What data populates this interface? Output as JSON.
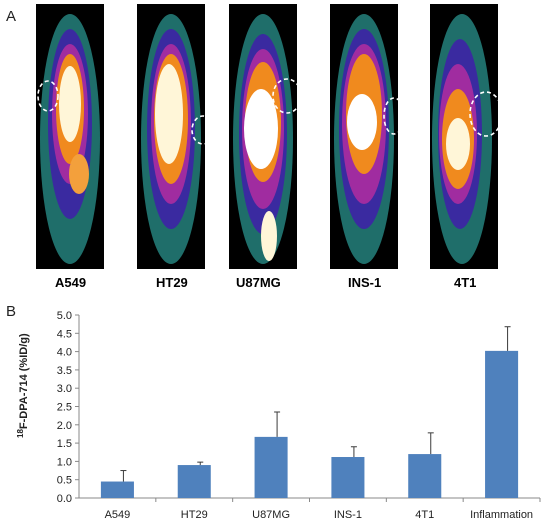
{
  "panels": {
    "a": "A",
    "b": "B"
  },
  "scans": [
    "A549",
    "HT29",
    "U87MG",
    "INS-1",
    "4T1"
  ],
  "chart_data": {
    "type": "bar",
    "categories": [
      "A549",
      "HT29",
      "U87MG",
      "INS-1",
      "4T1",
      "Inflammation"
    ],
    "values": [
      0.45,
      0.9,
      1.67,
      1.12,
      1.2,
      4.02
    ],
    "errors": [
      0.3,
      0.08,
      0.68,
      0.28,
      0.58,
      0.66
    ],
    "ylabel_sup": "18",
    "ylabel_rest": "F-DPA-714 (%ID/g)",
    "ylim": [
      0,
      5
    ],
    "yticks": [
      "0.0",
      "0.5",
      "1.0",
      "1.5",
      "2.0",
      "2.5",
      "3.0",
      "3.5",
      "4.0",
      "4.5",
      "5.0"
    ],
    "bar_color": "#4f81bd",
    "grid": false
  }
}
